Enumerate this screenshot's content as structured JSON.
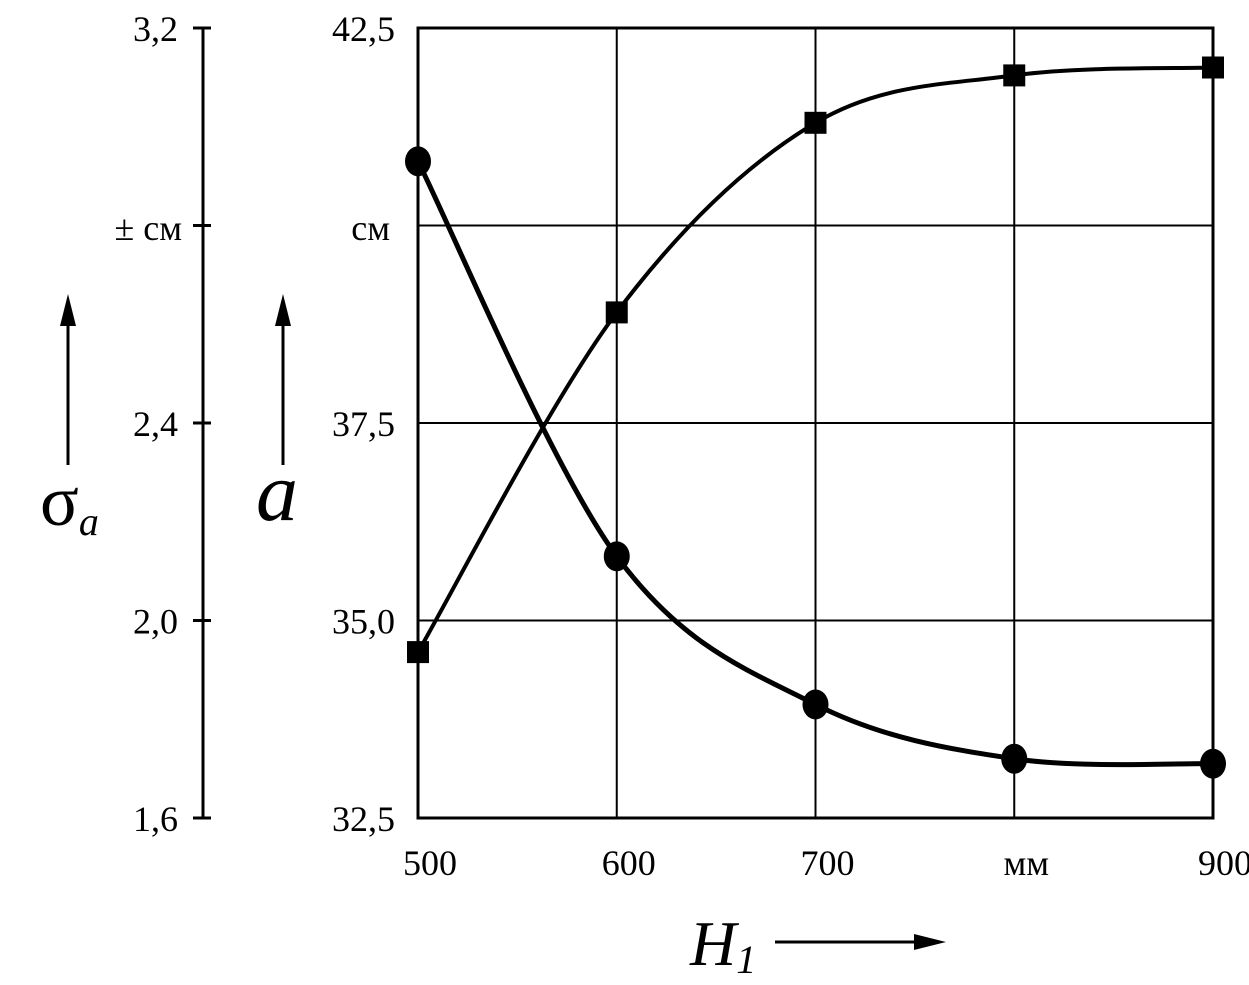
{
  "chart_data": {
    "type": "line",
    "x_ticks": [
      "500",
      "600",
      "700",
      "мм",
      "900"
    ],
    "x_values": [
      500,
      600,
      700,
      800,
      900
    ],
    "xlim": [
      500,
      900
    ],
    "xlabel": {
      "symbol": "H",
      "subscript": "1"
    },
    "y_left": {
      "label": {
        "symbol": "σ",
        "subscript": "a"
      },
      "unit": "± см",
      "ticks": [
        "3,2",
        "2,4",
        "2,0",
        "1,6"
      ],
      "tick_values": [
        3.2,
        2.4,
        2.0,
        1.6
      ],
      "ylim": [
        1.6,
        3.2
      ]
    },
    "y_right": {
      "label": "a",
      "unit": "см",
      "ticks": [
        "42,5",
        "37,5",
        "35,0",
        "32,5"
      ],
      "tick_values": [
        42.5,
        37.5,
        35.0,
        32.5
      ],
      "ylim": [
        32.5,
        42.5
      ]
    },
    "grid": true,
    "series": [
      {
        "marker": "square",
        "axis": "a",
        "x": [
          500,
          600,
          700,
          800,
          900
        ],
        "y": [
          34.6,
          38.9,
          41.3,
          41.9,
          42.0
        ]
      },
      {
        "marker": "circle",
        "axis": "sigma",
        "x": [
          500,
          600,
          700,
          800,
          900
        ],
        "y": [
          2.93,
          2.13,
          1.83,
          1.72,
          1.71
        ]
      }
    ]
  }
}
